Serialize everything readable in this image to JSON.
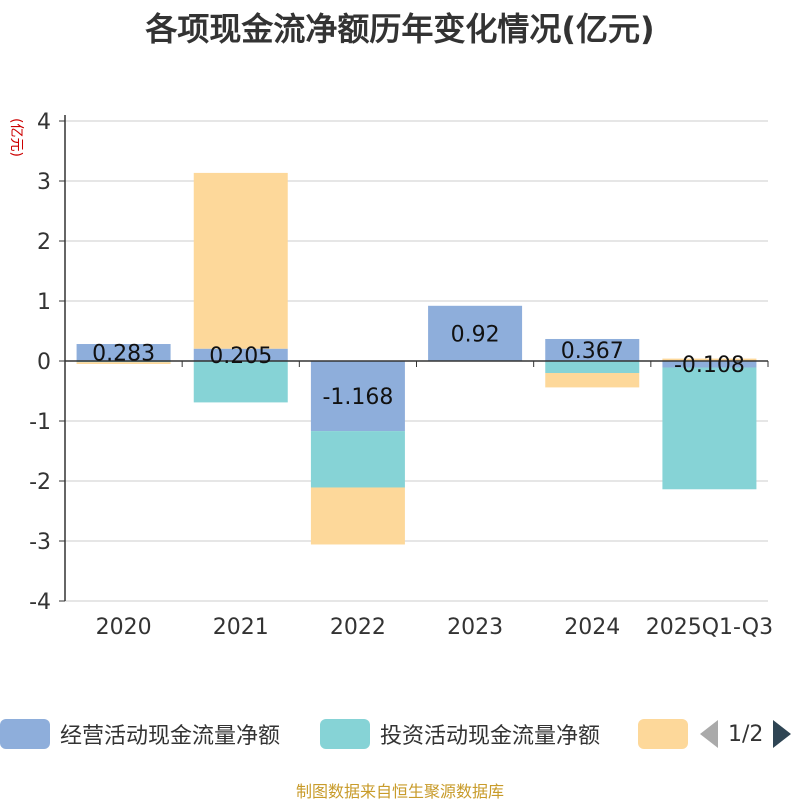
{
  "chart_data": {
    "type": "bar",
    "stacked": true,
    "title": "各项现金流净额历年变化情况(亿元)",
    "ylabel": "(亿元)",
    "ylim": [
      -4,
      4
    ],
    "yticks": [
      4,
      3,
      2,
      1,
      0,
      -1,
      -2,
      -3,
      -4
    ],
    "categories": [
      "2020",
      "2021",
      "2022",
      "2023",
      "2024",
      "2025Q1-Q3"
    ],
    "series": [
      {
        "name": "经营活动现金流量净额",
        "color": "#8eaedb",
        "values": [
          0.283,
          0.205,
          -1.168,
          0.92,
          0.367,
          -0.108
        ]
      },
      {
        "name": "投资活动现金流量净额",
        "color": "#86d3d6",
        "values": [
          -0.02,
          -0.69,
          -0.94,
          0,
          -0.2,
          -2.03
        ]
      },
      {
        "name": "",
        "color": "#fdd89a",
        "values": [
          -0.03,
          2.93,
          -0.95,
          0,
          -0.24,
          0.04
        ]
      }
    ],
    "data_labels": [
      "0.283",
      "0.205",
      "-1.168",
      "0.92",
      "0.367",
      "-0.108"
    ],
    "legend_position": "bottom"
  },
  "legend": {
    "page_text": "1/2"
  },
  "footer": "制图数据来自恒生聚源数据库"
}
